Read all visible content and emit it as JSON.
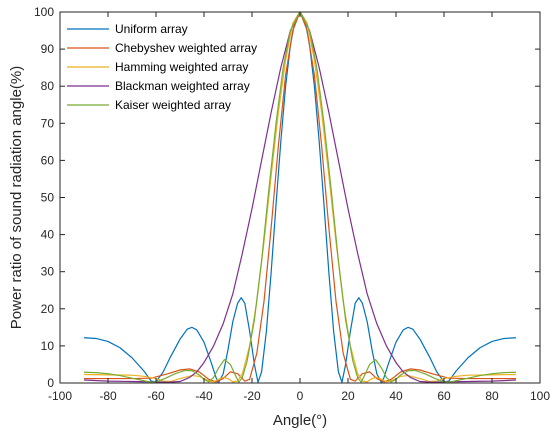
{
  "chart_data": {
    "type": "line",
    "xlabel": "Angle(°)",
    "ylabel": "Power ratio of sound radiation angle(%)",
    "xlim": [
      -100,
      100
    ],
    "ylim": [
      0,
      100
    ],
    "xticks": [
      -100,
      -80,
      -60,
      -40,
      -20,
      0,
      20,
      40,
      60,
      80,
      100
    ],
    "yticks": [
      0,
      10,
      20,
      30,
      40,
      50,
      60,
      70,
      80,
      90,
      100
    ],
    "x_tick_labels": [
      "-100",
      "-80",
      "-60",
      "-40",
      "-20",
      "0",
      "20",
      "40",
      "60",
      "80",
      "100"
    ],
    "y_tick_labels": [
      "0",
      "10",
      "20",
      "30",
      "40",
      "50",
      "60",
      "70",
      "80",
      "90",
      "100"
    ],
    "grid": false,
    "legend_position": "top-left",
    "series": [
      {
        "name": "Uniform array",
        "color": "#0072BD",
        "points": [
          [
            -90,
            12.2
          ],
          [
            -85,
            12
          ],
          [
            -80,
            11.2
          ],
          [
            -75,
            9.5
          ],
          [
            -70,
            6.8
          ],
          [
            -65,
            3.2
          ],
          [
            -62,
            0.5
          ],
          [
            -60,
            0.3
          ],
          [
            -57,
            3
          ],
          [
            -54,
            7
          ],
          [
            -50,
            11.8
          ],
          [
            -47,
            14.5
          ],
          [
            -45,
            15
          ],
          [
            -43,
            14.3
          ],
          [
            -40,
            11
          ],
          [
            -37,
            5.5
          ],
          [
            -35,
            1.5
          ],
          [
            -34,
            0
          ],
          [
            -32,
            2.5
          ],
          [
            -30,
            9
          ],
          [
            -28,
            16.5
          ],
          [
            -26,
            21.5
          ],
          [
            -24.5,
            23
          ],
          [
            -23,
            21.5
          ],
          [
            -21,
            14
          ],
          [
            -19,
            5
          ],
          [
            -17.5,
            0.2
          ],
          [
            -16,
            3
          ],
          [
            -14,
            14
          ],
          [
            -12,
            30
          ],
          [
            -10,
            48
          ],
          [
            -8,
            65
          ],
          [
            -6,
            80
          ],
          [
            -4,
            91
          ],
          [
            -2,
            98
          ],
          [
            0,
            100
          ],
          [
            2,
            98
          ],
          [
            4,
            91
          ],
          [
            6,
            80
          ],
          [
            8,
            65
          ],
          [
            10,
            48
          ],
          [
            12,
            30
          ],
          [
            14,
            14
          ],
          [
            16,
            3
          ],
          [
            17.5,
            0.2
          ],
          [
            19,
            5
          ],
          [
            21,
            14
          ],
          [
            23,
            21.5
          ],
          [
            24.5,
            23
          ],
          [
            26,
            21.5
          ],
          [
            28,
            16.5
          ],
          [
            30,
            9
          ],
          [
            32,
            2.5
          ],
          [
            34,
            0
          ],
          [
            35,
            1.5
          ],
          [
            37,
            5.5
          ],
          [
            40,
            11
          ],
          [
            43,
            14.3
          ],
          [
            45,
            15
          ],
          [
            47,
            14.5
          ],
          [
            50,
            11.8
          ],
          [
            54,
            7
          ],
          [
            57,
            3
          ],
          [
            60,
            0.3
          ],
          [
            62,
            0.5
          ],
          [
            65,
            3.2
          ],
          [
            70,
            6.8
          ],
          [
            75,
            9.5
          ],
          [
            80,
            11.2
          ],
          [
            85,
            12
          ],
          [
            90,
            12.2
          ]
        ]
      },
      {
        "name": "Chebyshev weighted array",
        "color": "#D95319",
        "points": [
          [
            -90,
            1.2
          ],
          [
            -80,
            1.2
          ],
          [
            -70,
            1.2
          ],
          [
            -62,
            1.3
          ],
          [
            -55,
            2.5
          ],
          [
            -50,
            3.5
          ],
          [
            -46,
            3.8
          ],
          [
            -42,
            3
          ],
          [
            -38,
            1
          ],
          [
            -35,
            0.3
          ],
          [
            -32,
            1.2
          ],
          [
            -29,
            3
          ],
          [
            -26,
            2.5
          ],
          [
            -23,
            0.5
          ],
          [
            -21,
            1
          ],
          [
            -18,
            8
          ],
          [
            -15,
            22
          ],
          [
            -12,
            42
          ],
          [
            -9,
            64
          ],
          [
            -6,
            83
          ],
          [
            -3,
            95
          ],
          [
            0,
            100
          ],
          [
            3,
            95
          ],
          [
            6,
            83
          ],
          [
            9,
            64
          ],
          [
            12,
            42
          ],
          [
            15,
            22
          ],
          [
            18,
            8
          ],
          [
            21,
            1
          ],
          [
            23,
            0.5
          ],
          [
            26,
            2.5
          ],
          [
            29,
            3
          ],
          [
            32,
            1.2
          ],
          [
            35,
            0.3
          ],
          [
            38,
            1
          ],
          [
            42,
            3
          ],
          [
            46,
            3.8
          ],
          [
            50,
            3.5
          ],
          [
            55,
            2.5
          ],
          [
            62,
            1.3
          ],
          [
            70,
            1.2
          ],
          [
            80,
            1.2
          ],
          [
            90,
            1.2
          ]
        ]
      },
      {
        "name": "Hamming weighted array",
        "color": "#EDB120",
        "points": [
          [
            -90,
            2.3
          ],
          [
            -80,
            2.2
          ],
          [
            -70,
            2.1
          ],
          [
            -65,
            1.8
          ],
          [
            -60,
            1.2
          ],
          [
            -57,
            0.5
          ],
          [
            -54,
            0.4
          ],
          [
            -50,
            1.2
          ],
          [
            -45,
            2
          ],
          [
            -42,
            1.8
          ],
          [
            -38,
            0.6
          ],
          [
            -36,
            0.3
          ],
          [
            -34,
            1
          ],
          [
            -32,
            1.5
          ],
          [
            -30,
            1.2
          ],
          [
            -28,
            0.3
          ],
          [
            -26,
            0.5
          ],
          [
            -24,
            2.5
          ],
          [
            -21,
            10
          ],
          [
            -18,
            22
          ],
          [
            -15,
            38
          ],
          [
            -12,
            56
          ],
          [
            -9,
            73
          ],
          [
            -6,
            87
          ],
          [
            -3,
            97
          ],
          [
            0,
            100
          ],
          [
            3,
            97
          ],
          [
            6,
            87
          ],
          [
            9,
            73
          ],
          [
            12,
            56
          ],
          [
            15,
            38
          ],
          [
            18,
            22
          ],
          [
            21,
            10
          ],
          [
            24,
            2.5
          ],
          [
            26,
            0.5
          ],
          [
            28,
            0.3
          ],
          [
            30,
            1.2
          ],
          [
            32,
            1.5
          ],
          [
            34,
            1
          ],
          [
            36,
            0.3
          ],
          [
            38,
            0.6
          ],
          [
            42,
            1.8
          ],
          [
            45,
            2
          ],
          [
            50,
            1.2
          ],
          [
            54,
            0.4
          ],
          [
            57,
            0.5
          ],
          [
            60,
            1.2
          ],
          [
            65,
            1.8
          ],
          [
            70,
            2.1
          ],
          [
            80,
            2.2
          ],
          [
            90,
            2.3
          ]
        ]
      },
      {
        "name": "Blackman weighted array",
        "color": "#7E2F8E",
        "points": [
          [
            -90,
            0.8
          ],
          [
            -80,
            0.5
          ],
          [
            -70,
            0.4
          ],
          [
            -60,
            0.3
          ],
          [
            -55,
            0.2
          ],
          [
            -50,
            0.4
          ],
          [
            -46,
            1.5
          ],
          [
            -43,
            3
          ],
          [
            -40,
            5.5
          ],
          [
            -36,
            10
          ],
          [
            -32,
            16
          ],
          [
            -28,
            24
          ],
          [
            -24,
            35
          ],
          [
            -20,
            47
          ],
          [
            -16,
            60
          ],
          [
            -12,
            73
          ],
          [
            -8,
            85
          ],
          [
            -4,
            95
          ],
          [
            0,
            100
          ],
          [
            4,
            95
          ],
          [
            8,
            85
          ],
          [
            12,
            73
          ],
          [
            16,
            60
          ],
          [
            20,
            47
          ],
          [
            24,
            35
          ],
          [
            28,
            24
          ],
          [
            32,
            16
          ],
          [
            36,
            10
          ],
          [
            40,
            5.5
          ],
          [
            43,
            3
          ],
          [
            46,
            1.5
          ],
          [
            50,
            0.4
          ],
          [
            55,
            0.2
          ],
          [
            60,
            0.3
          ],
          [
            70,
            0.4
          ],
          [
            80,
            0.5
          ],
          [
            90,
            0.8
          ]
        ]
      },
      {
        "name": "Kaiser weighted array",
        "color": "#77AC30",
        "points": [
          [
            -90,
            2.9
          ],
          [
            -85,
            2.8
          ],
          [
            -80,
            2.5
          ],
          [
            -75,
            2
          ],
          [
            -70,
            1.3
          ],
          [
            -65,
            0.6
          ],
          [
            -62,
            0.2
          ],
          [
            -60,
            0.3
          ],
          [
            -56,
            1.3
          ],
          [
            -52,
            2.5
          ],
          [
            -48,
            3.4
          ],
          [
            -45,
            3.3
          ],
          [
            -42,
            2.2
          ],
          [
            -40,
            1
          ],
          [
            -38,
            0.3
          ],
          [
            -36,
            1.5
          ],
          [
            -34,
            4
          ],
          [
            -31.5,
            6.3
          ],
          [
            -29,
            5
          ],
          [
            -27,
            2.2
          ],
          [
            -25.5,
            0.2
          ],
          [
            -24,
            1.5
          ],
          [
            -22,
            6
          ],
          [
            -19,
            17
          ],
          [
            -16,
            33
          ],
          [
            -13,
            52
          ],
          [
            -10,
            70
          ],
          [
            -7,
            85
          ],
          [
            -4,
            95
          ],
          [
            0,
            100
          ],
          [
            4,
            95
          ],
          [
            7,
            85
          ],
          [
            10,
            70
          ],
          [
            13,
            52
          ],
          [
            16,
            33
          ],
          [
            19,
            17
          ],
          [
            22,
            6
          ],
          [
            24,
            1.5
          ],
          [
            25.5,
            0.2
          ],
          [
            27,
            2.2
          ],
          [
            29,
            5
          ],
          [
            31.5,
            6.3
          ],
          [
            34,
            4
          ],
          [
            36,
            1.5
          ],
          [
            38,
            0.3
          ],
          [
            40,
            1
          ],
          [
            42,
            2.2
          ],
          [
            45,
            3.3
          ],
          [
            48,
            3.4
          ],
          [
            52,
            2.5
          ],
          [
            56,
            1.3
          ],
          [
            60,
            0.3
          ],
          [
            62,
            0.2
          ],
          [
            65,
            0.6
          ],
          [
            70,
            1.3
          ],
          [
            75,
            2
          ],
          [
            80,
            2.5
          ],
          [
            85,
            2.8
          ],
          [
            90,
            2.9
          ]
        ]
      }
    ]
  }
}
